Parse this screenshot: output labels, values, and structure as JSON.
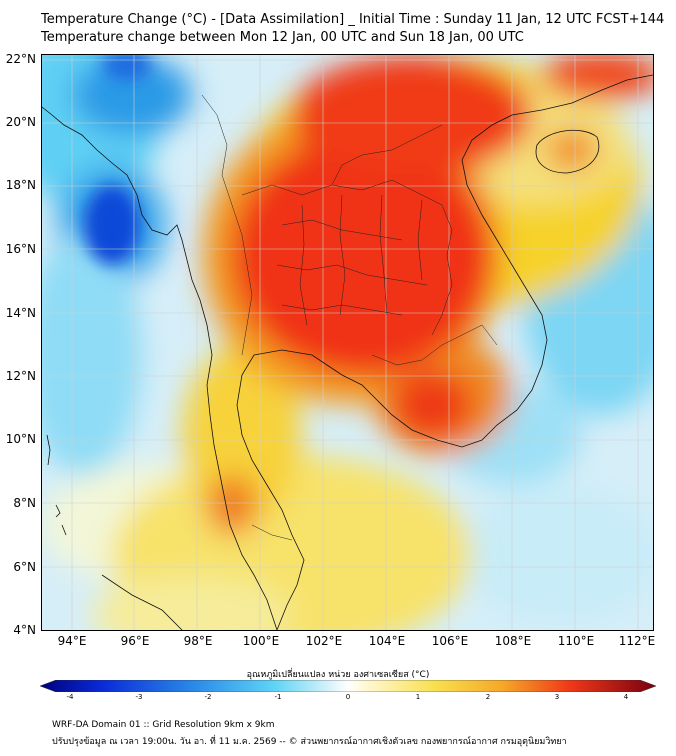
{
  "title": {
    "line1": "Temperature Change (°C) - [Data Assimilation] _ Initial Time : Sunday 11 Jan, 12 UTC FCST+144",
    "line2": "Temperature change between Mon 12 Jan, 00 UTC and Sun 18 Jan, 00 UTC"
  },
  "map": {
    "lat_range": [
      4,
      22
    ],
    "lon_range": [
      93,
      112.5
    ],
    "lat_labels": [
      "22°N",
      "20°N",
      "18°N",
      "16°N",
      "14°N",
      "12°N",
      "10°N",
      "8°N",
      "6°N",
      "4°N"
    ],
    "lon_labels": [
      "94°E",
      "96°E",
      "98°E",
      "100°E",
      "102°E",
      "104°E",
      "106°E",
      "108°E",
      "110°E",
      "112°E"
    ],
    "colors": {
      "cooling_strong": "#0a3fd8",
      "cooling": "#38c4f2",
      "neutral": "#f2f8fb",
      "warming": "#f7d830",
      "warming_strong": "#f0301a"
    }
  },
  "colorbar": {
    "title": "อุณหภูมิเปลี่ยนแปลง หน่วย องศาเซลเซียส (°C)",
    "ticks": [
      "-4",
      "-3",
      "-2",
      "-1",
      "0",
      "1",
      "2",
      "3",
      "4"
    ],
    "range": [
      -4,
      4
    ]
  },
  "footer": {
    "line1": "WRF-DA Domain 01 :: Grid Resolution 9km x 9km",
    "line2": "ปรับปรุงข้อมูล ณ เวลา 19:00น. วัน อา. ที่ 11 ม.ค. 2569 -- © ส่วนพยากรณ์อากาศเชิงตัวเลข กองพยากรณ์อากาศ กรมอุตุนิยมวิทยา"
  }
}
